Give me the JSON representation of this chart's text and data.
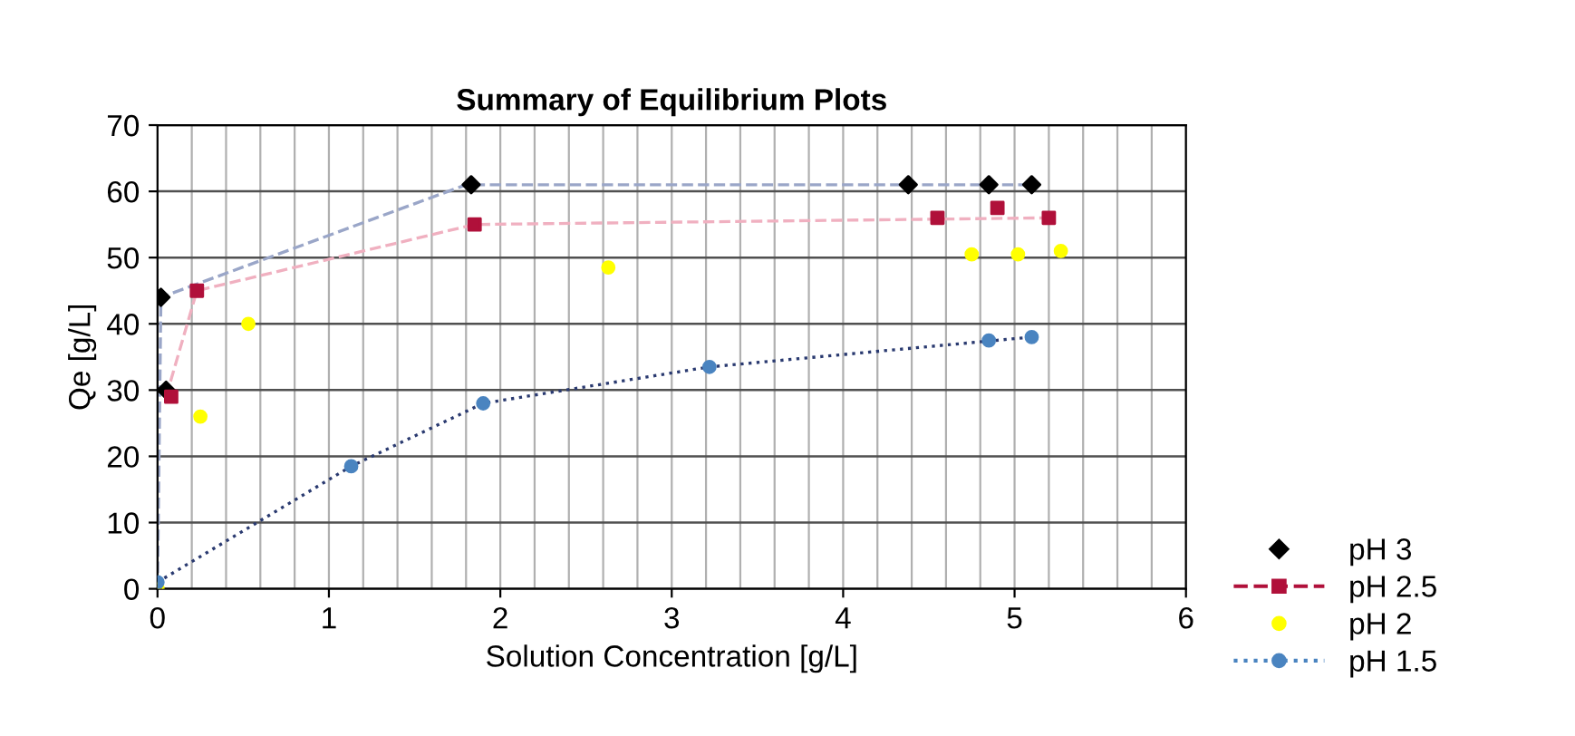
{
  "chart_data": {
    "type": "scatter",
    "title": "Summary of Equilibrium Plots",
    "xlabel": "Solution Concentration [g/L]",
    "ylabel": "Qe [g/L]",
    "xlim": [
      0,
      6
    ],
    "xticks": [
      0,
      1,
      2,
      3,
      4,
      5,
      6
    ],
    "ylim": [
      0,
      70
    ],
    "yticks": [
      0,
      10,
      20,
      30,
      40,
      50,
      60,
      70
    ],
    "grid": true,
    "legend": "bottom right",
    "series": [
      {
        "name": "pH 3",
        "color": "#000000",
        "marker": "diamond",
        "x": [
          0.02,
          0.05,
          1.83,
          4.38,
          4.85,
          5.1
        ],
        "values": [
          44,
          30,
          61,
          61,
          61,
          61
        ]
      },
      {
        "name": "pH 2.5",
        "color": "#b0103a",
        "marker": "square",
        "line_style": "dashed",
        "x": [
          0.08,
          0.23,
          1.85,
          4.55,
          4.9,
          5.2
        ],
        "values": [
          29,
          45,
          55,
          56,
          57.5,
          56
        ]
      },
      {
        "name": "pH 2",
        "color": "#ffff00",
        "marker": "circle",
        "x": [
          0,
          0.25,
          0.53,
          2.63,
          4.75,
          5.02,
          5.27
        ],
        "values": [
          0,
          26,
          40,
          48.5,
          50.5,
          50.5,
          51
        ]
      },
      {
        "name": "pH 1.5",
        "color": "#4a84c0",
        "marker": "circle",
        "line_style": "dotted",
        "x": [
          0,
          1.13,
          1.9,
          3.22,
          4.85,
          5.1
        ],
        "values": [
          1,
          18.5,
          28,
          33.5,
          37.5,
          38
        ]
      },
      {
        "type": "line",
        "color": "#9aa6c8",
        "line_style": "dashed",
        "marker": "none",
        "x": [
          0,
          0.02,
          1.8,
          5.1
        ],
        "values": [
          0,
          44,
          61,
          61
        ]
      },
      {
        "type": "line",
        "color": "#f0b0c0",
        "line_style": "dashed",
        "marker": "none",
        "x": [
          0.05,
          0.23,
          1.85,
          5.2
        ],
        "values": [
          29,
          45,
          55,
          56
        ]
      },
      {
        "type": "line",
        "color": "#2a3a70",
        "line_style": "dotted",
        "marker": "none",
        "x": [
          0,
          1.13,
          1.9,
          3.22,
          5.1
        ],
        "values": [
          1,
          18.5,
          28,
          33.5,
          38
        ]
      }
    ]
  }
}
